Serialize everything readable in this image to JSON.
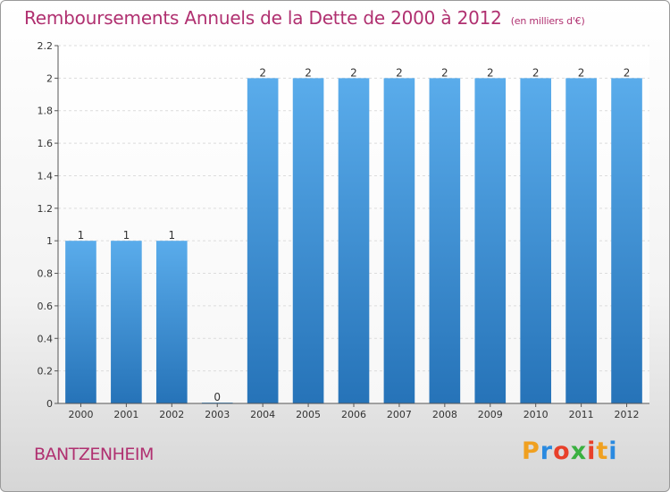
{
  "title": "Remboursements Annuels de la Dette de 2000 à 2012",
  "subtitle": "(en milliers d'€)",
  "commune": "BANTZENHEIM",
  "logo": {
    "letters": [
      "P",
      "r",
      "o",
      "x",
      "i",
      "t",
      "i"
    ],
    "colors": [
      "#f0a020",
      "#2a8ae0",
      "#e8402a",
      "#3ab040",
      "#e8402a",
      "#f0a020",
      "#2a8ae0"
    ]
  },
  "colors": {
    "bar_top": "#5aaceb",
    "bar_bottom": "#2673b8",
    "text_accent": "#b03070"
  },
  "chart_data": {
    "type": "bar",
    "categories": [
      "2000",
      "2001",
      "2002",
      "2003",
      "2004",
      "2005",
      "2006",
      "2007",
      "2008",
      "2009",
      "2010",
      "2011",
      "2012"
    ],
    "values": [
      1,
      1,
      1,
      0,
      2,
      2,
      2,
      2,
      2,
      2,
      2,
      2,
      2
    ],
    "data_labels": [
      "1",
      "1",
      "1",
      "0",
      "2",
      "2",
      "2",
      "2",
      "2",
      "2",
      "2",
      "2",
      "2"
    ],
    "ylim": [
      0,
      2.2
    ],
    "yticks": [
      0,
      0.2,
      0.4,
      0.6,
      0.8,
      1,
      1.2,
      1.4,
      1.6,
      1.8,
      2,
      2.2
    ],
    "ytick_labels": [
      "0",
      "0.2",
      "0.4",
      "0.6",
      "0.8",
      "1",
      "1.2",
      "1.4",
      "1.6",
      "1.8",
      "2",
      "2.2"
    ],
    "grid": true,
    "xlabel": "",
    "ylabel": ""
  }
}
